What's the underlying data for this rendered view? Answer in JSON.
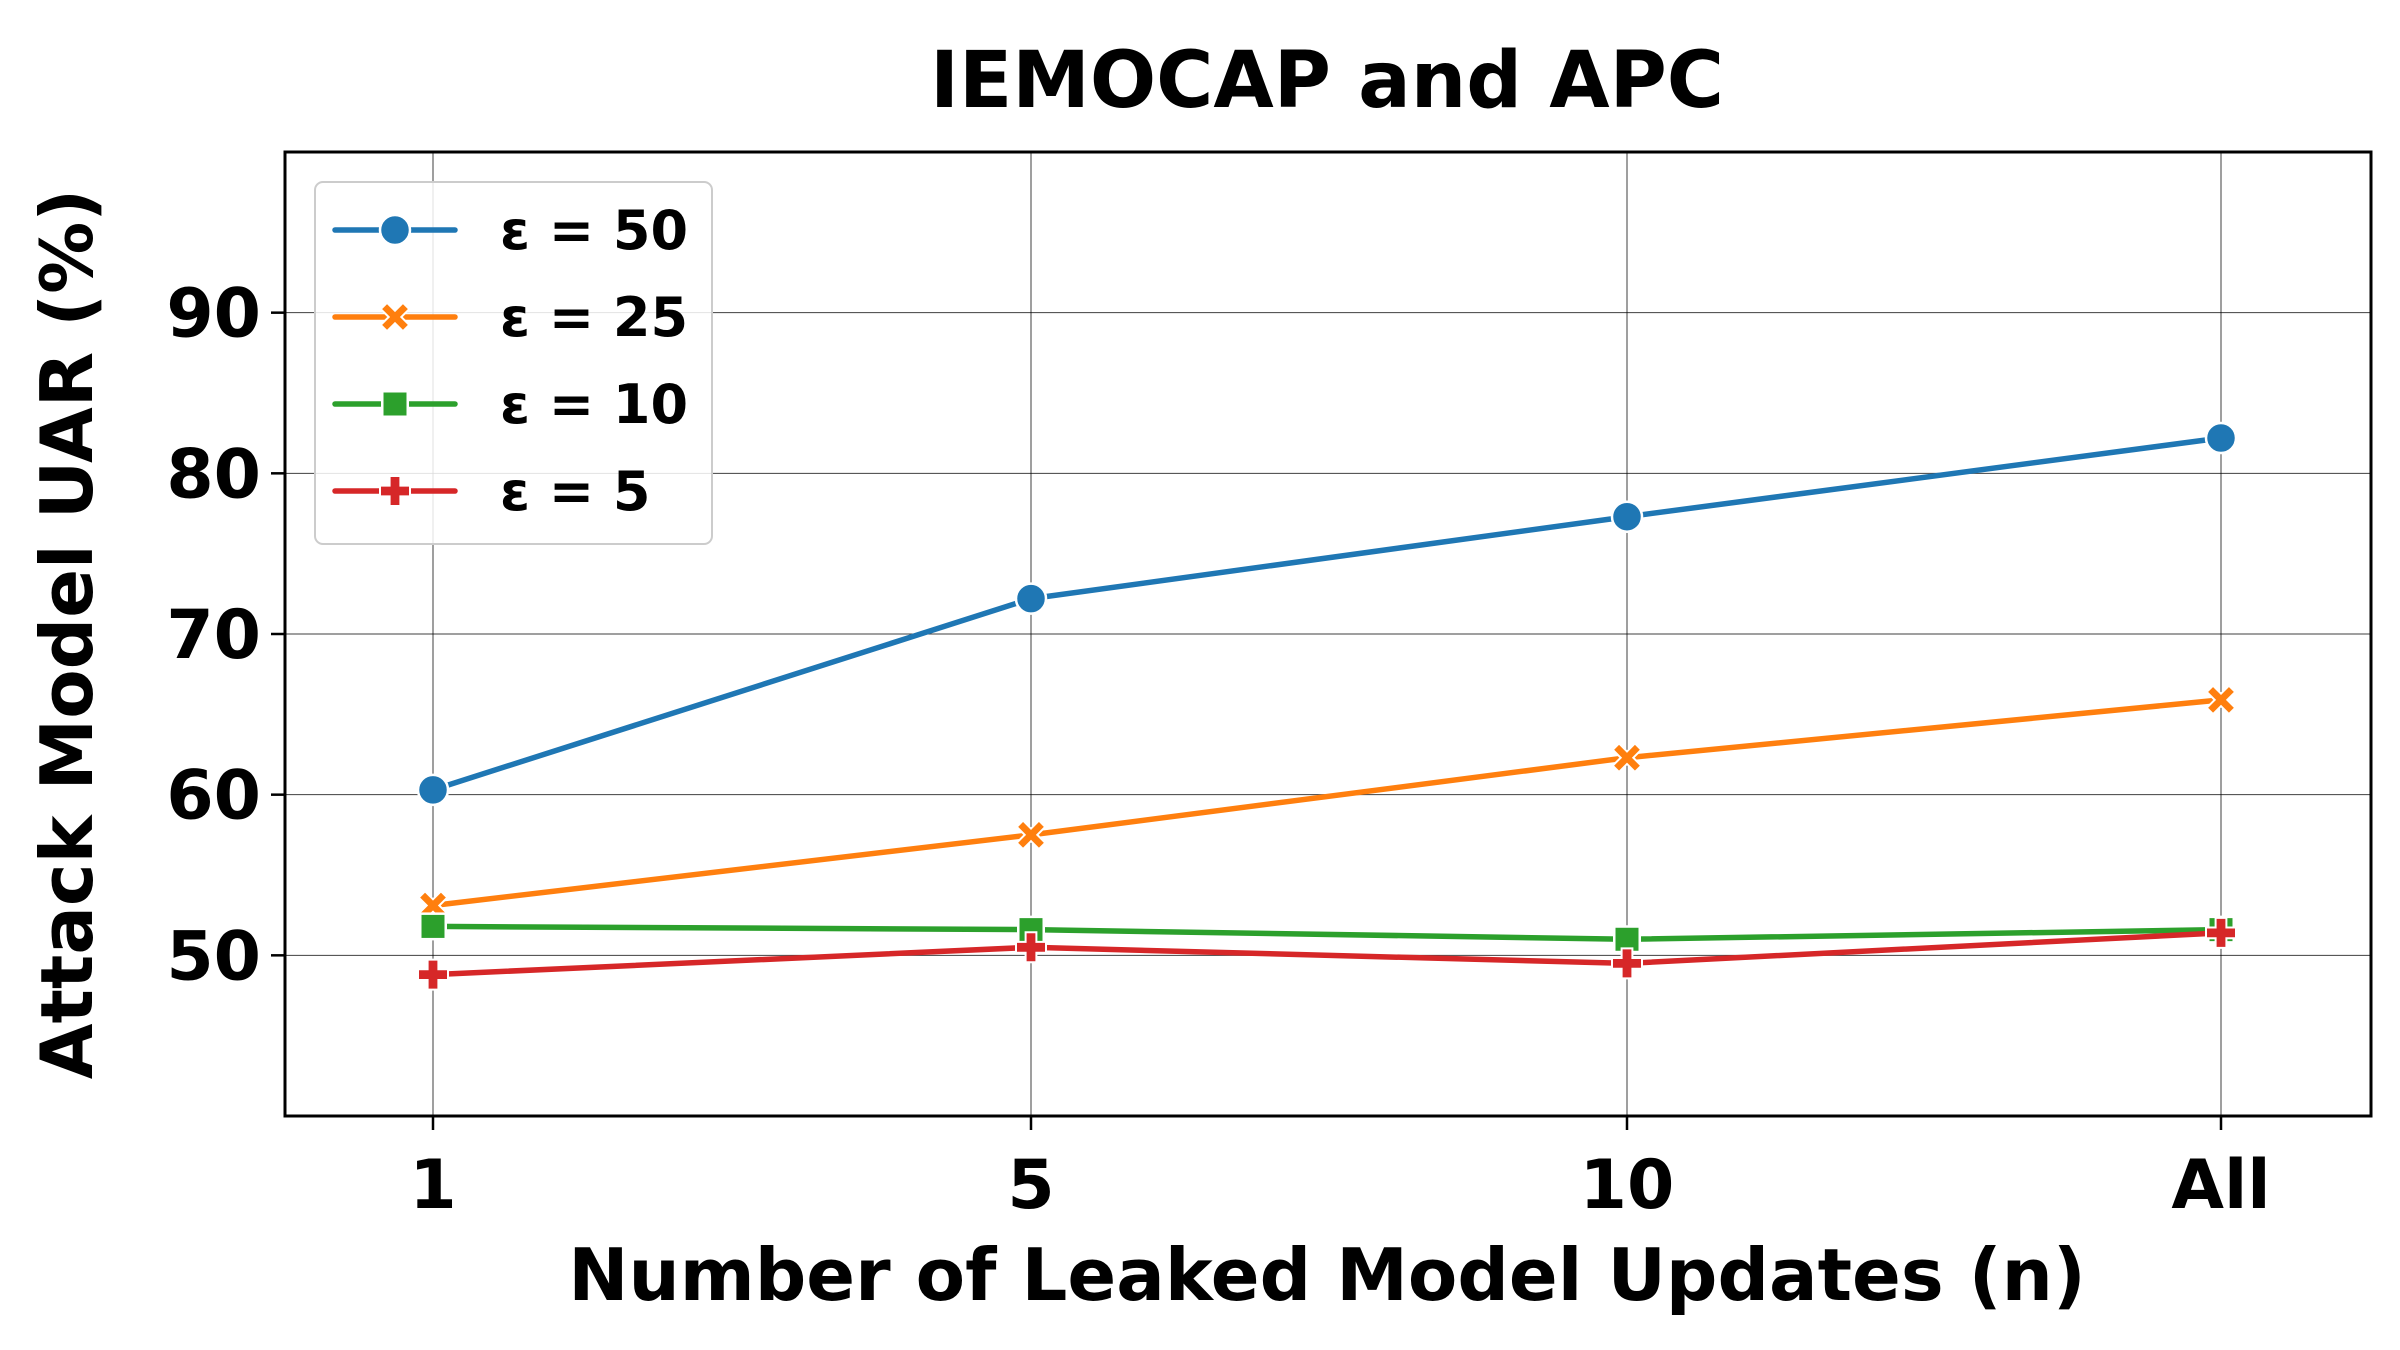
{
  "chart_data": {
    "type": "line",
    "title": "IEMOCAP and APC",
    "xlabel": "Number of Leaked Model Updates (n)",
    "ylabel": "Attack Model UAR (%)",
    "categories": [
      "1",
      "5",
      "10",
      "All"
    ],
    "ylim": [
      40,
      100
    ],
    "yticks": [
      50,
      60,
      70,
      80,
      90
    ],
    "grid": true,
    "legend_position": "top-left",
    "series": [
      {
        "name": "ε = 50",
        "color": "#1f77b4",
        "marker": "circle",
        "values": [
          60.3,
          72.2,
          77.3,
          82.2
        ]
      },
      {
        "name": "ε = 25",
        "color": "#ff7f0e",
        "marker": "x",
        "values": [
          53.1,
          57.5,
          62.3,
          65.9
        ]
      },
      {
        "name": "ε = 10",
        "color": "#2ca02c",
        "marker": "square",
        "values": [
          51.8,
          51.6,
          51.0,
          51.6
        ]
      },
      {
        "name": "ε = 5",
        "color": "#d62728",
        "marker": "plus",
        "values": [
          48.8,
          50.5,
          49.5,
          51.4
        ]
      }
    ]
  }
}
